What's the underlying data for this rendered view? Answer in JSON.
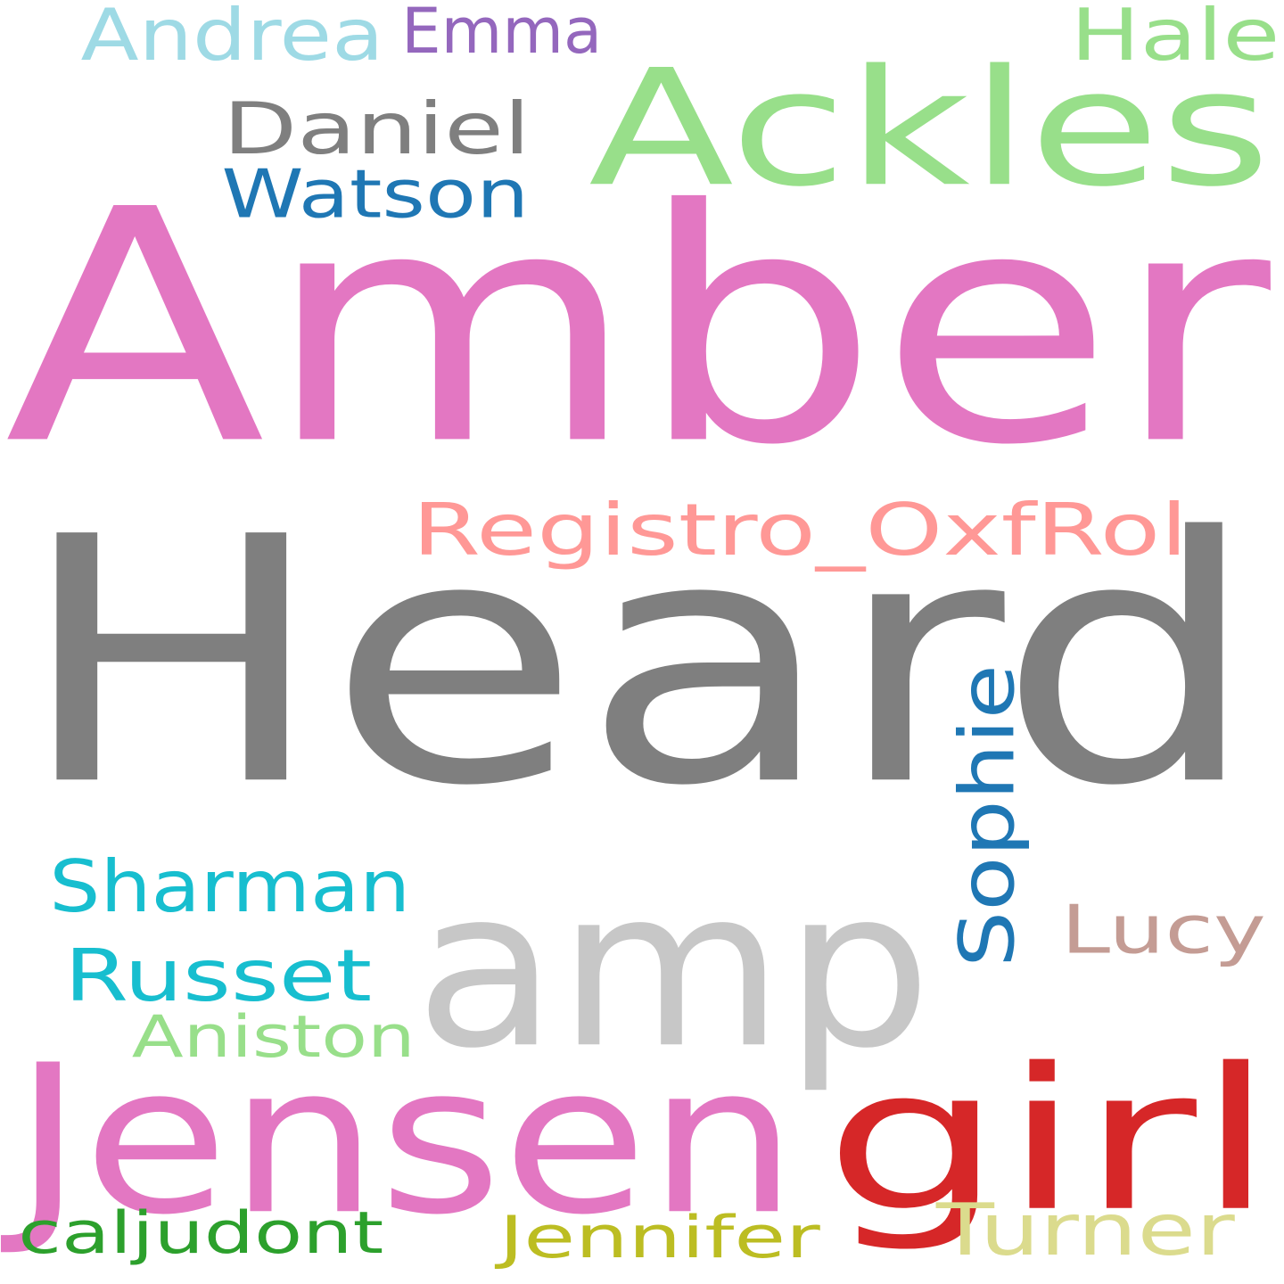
{
  "background_color": "#ffffff",
  "words": [
    {
      "id": "amber",
      "text": "Amber",
      "color": "#e377c2"
    },
    {
      "id": "heard",
      "text": "Heard",
      "color": "#7f7f7f"
    },
    {
      "id": "ackles",
      "text": "Ackles",
      "color": "#98df8a"
    },
    {
      "id": "amp",
      "text": "amp",
      "color": "#c7c7c7"
    },
    {
      "id": "jensen",
      "text": "Jensen",
      "color": "#e377c2"
    },
    {
      "id": "girl",
      "text": "girl",
      "color": "#d62728"
    },
    {
      "id": "registro",
      "text": "Registro_OxfRol",
      "color": "#ff9896"
    },
    {
      "id": "daniel",
      "text": "Daniel",
      "color": "#7f7f7f"
    },
    {
      "id": "watson",
      "text": "Watson",
      "color": "#1f77b4"
    },
    {
      "id": "andrea",
      "text": "Andrea",
      "color": "#9edae5"
    },
    {
      "id": "emma",
      "text": "Emma",
      "color": "#9467bd"
    },
    {
      "id": "hale",
      "text": "Hale",
      "color": "#98df8a"
    },
    {
      "id": "sophie",
      "text": "Sophie",
      "color": "#1f77b4"
    },
    {
      "id": "sharman",
      "text": "Sharman",
      "color": "#17becf"
    },
    {
      "id": "russet",
      "text": "Russet",
      "color": "#17becf"
    },
    {
      "id": "lucy",
      "text": "Lucy",
      "color": "#c49c94"
    },
    {
      "id": "aniston",
      "text": "Aniston",
      "color": "#98df8a"
    },
    {
      "id": "turner",
      "text": "Turner",
      "color": "#dbdb8d"
    },
    {
      "id": "jennifer",
      "text": "Jennifer",
      "color": "#bcbd22"
    },
    {
      "id": "caljudont",
      "text": "caljudont",
      "color": "#2ca02c"
    }
  ]
}
